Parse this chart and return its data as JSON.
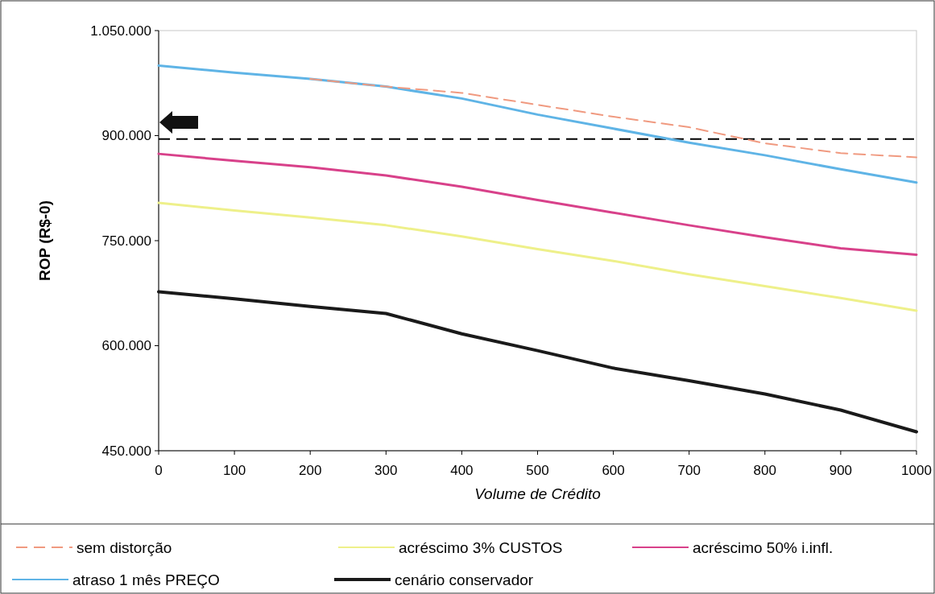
{
  "chart_data": {
    "type": "line",
    "xlabel": "Volume de Crédito",
    "ylabel": "ROP (R$-0)",
    "x": [
      0,
      100,
      200,
      300,
      400,
      500,
      600,
      700,
      800,
      900,
      1000
    ],
    "xlim": [
      0,
      1000
    ],
    "xticks": [
      0,
      100,
      200,
      300,
      400,
      500,
      600,
      700,
      800,
      900,
      1000
    ],
    "ylim": [
      450000,
      1050000
    ],
    "yticks": [
      {
        "value": 450000,
        "label": "450.000"
      },
      {
        "value": 600000,
        "label": "600.000"
      },
      {
        "value": 750000,
        "label": "750.000"
      },
      {
        "value": 900000,
        "label": "900.000"
      },
      {
        "value": 1050000,
        "label": "1.050.000"
      }
    ],
    "grid": false,
    "legend": "bottom",
    "series": [
      {
        "name": "sem distorção",
        "color": "#f09a80",
        "line_style": "dashed",
        "values": [
          null,
          null,
          981000,
          970000,
          961000,
          944000,
          927000,
          912000,
          889000,
          875000,
          869000
        ]
      },
      {
        "name": "acréscimo 3% CUSTOS",
        "color": "#eef08a",
        "line_style": "solid",
        "values": [
          804000,
          793000,
          783000,
          772000,
          756000,
          738000,
          721000,
          702000,
          685000,
          668000,
          650000
        ]
      },
      {
        "name": "acréscimo 50% i.infl.",
        "color": "#d8418a",
        "line_style": "solid",
        "values": [
          874000,
          864000,
          855000,
          843000,
          827000,
          808000,
          790000,
          772000,
          755000,
          739000,
          730000
        ]
      },
      {
        "name": "atraso 1 mês PREÇO",
        "color": "#5fb4e6",
        "line_style": "solid",
        "values": [
          1000000,
          990000,
          981000,
          970000,
          953000,
          930000,
          910000,
          890000,
          872000,
          852000,
          833000
        ]
      },
      {
        "name": "cenário conservador",
        "color": "#1a1a1a",
        "line_style": "solid",
        "values": [
          677000,
          667000,
          656000,
          646000,
          617000,
          593000,
          568000,
          550000,
          531000,
          508000,
          477000
        ]
      }
    ],
    "ref_lines": [
      {
        "axis": "y",
        "value": 895000,
        "color": "#000000",
        "line_style": "dashed"
      }
    ]
  }
}
